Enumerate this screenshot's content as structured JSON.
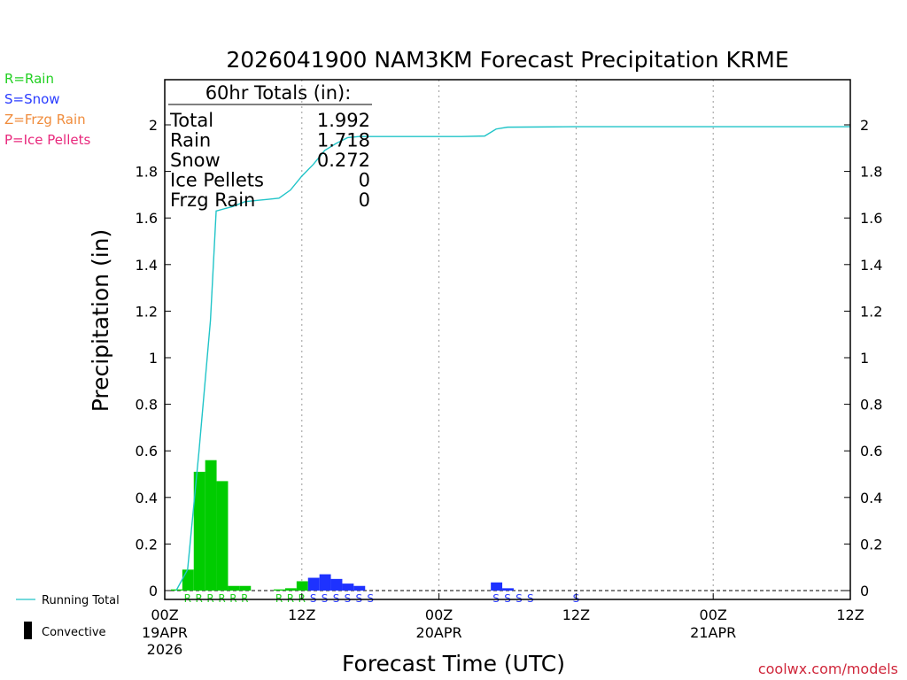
{
  "chart_data": {
    "type": "bar",
    "title": "2026041900 NAM3KM Forecast Precipitation KRME",
    "xlabel": "Forecast Time (UTC)",
    "ylabel": "Precipitation (in)",
    "ylim": [
      0,
      2.2
    ],
    "xlim_hours": [
      0,
      60
    ],
    "yticks": [
      "0",
      "0.2",
      "0.4",
      "0.6",
      "0.8",
      "1",
      "1.2",
      "1.4",
      "1.6",
      "1.8",
      "2"
    ],
    "xticks": [
      {
        "hour": 0,
        "label": "00Z",
        "date": "19APR",
        "year": "2026"
      },
      {
        "hour": 12,
        "label": "12Z",
        "date": "",
        "year": ""
      },
      {
        "hour": 24,
        "label": "00Z",
        "date": "20APR",
        "year": ""
      },
      {
        "hour": 36,
        "label": "12Z",
        "date": "",
        "year": ""
      },
      {
        "hour": 48,
        "label": "00Z",
        "date": "21APR",
        "year": ""
      },
      {
        "hour": 60,
        "label": "12Z",
        "date": "",
        "year": ""
      }
    ],
    "bar_width_hours": 1,
    "bars": [
      {
        "hour": 1,
        "value": 0.005,
        "type": "rain"
      },
      {
        "hour": 2,
        "value": 0.09,
        "type": "rain"
      },
      {
        "hour": 3,
        "value": 0.51,
        "type": "rain"
      },
      {
        "hour": 4,
        "value": 0.56,
        "type": "rain"
      },
      {
        "hour": 5,
        "value": 0.47,
        "type": "rain"
      },
      {
        "hour": 6,
        "value": 0.02,
        "type": "rain"
      },
      {
        "hour": 7,
        "value": 0.02,
        "type": "rain"
      },
      {
        "hour": 10,
        "value": 0.005,
        "type": "rain"
      },
      {
        "hour": 11,
        "value": 0.01,
        "type": "rain"
      },
      {
        "hour": 12,
        "value": 0.04,
        "type": "rain"
      },
      {
        "hour": 13,
        "value": 0.055,
        "type": "snow"
      },
      {
        "hour": 14,
        "value": 0.07,
        "type": "snow"
      },
      {
        "hour": 15,
        "value": 0.05,
        "type": "snow"
      },
      {
        "hour": 16,
        "value": 0.03,
        "type": "snow"
      },
      {
        "hour": 17,
        "value": 0.02,
        "type": "snow"
      },
      {
        "hour": 29,
        "value": 0.035,
        "type": "snow"
      },
      {
        "hour": 30,
        "value": 0.01,
        "type": "snow"
      }
    ],
    "running_total": {
      "name": "Running Total",
      "points": [
        [
          1,
          0.0
        ],
        [
          2,
          0.09
        ],
        [
          3,
          0.6
        ],
        [
          4,
          1.16
        ],
        [
          4.5,
          1.63
        ],
        [
          6,
          1.65
        ],
        [
          7,
          1.67
        ],
        [
          8,
          1.675
        ],
        [
          9,
          1.68
        ],
        [
          10,
          1.685
        ],
        [
          11,
          1.72
        ],
        [
          12,
          1.78
        ],
        [
          13,
          1.83
        ],
        [
          14,
          1.89
        ],
        [
          15,
          1.92
        ],
        [
          16,
          1.945
        ],
        [
          17,
          1.95
        ],
        [
          18,
          1.95
        ],
        [
          20,
          1.95
        ],
        [
          22,
          1.95
        ],
        [
          24,
          1.95
        ],
        [
          26,
          1.95
        ],
        [
          28,
          1.952
        ],
        [
          29,
          1.982
        ],
        [
          30,
          1.99
        ],
        [
          33,
          1.991
        ],
        [
          36,
          1.992
        ],
        [
          48,
          1.992
        ],
        [
          60,
          1.992
        ]
      ]
    },
    "type_markers": [
      {
        "hour": 2,
        "char": "R",
        "type": "rain"
      },
      {
        "hour": 3,
        "char": "R",
        "type": "rain"
      },
      {
        "hour": 4,
        "char": "R",
        "type": "rain"
      },
      {
        "hour": 5,
        "char": "R",
        "type": "rain"
      },
      {
        "hour": 6,
        "char": "R",
        "type": "rain"
      },
      {
        "hour": 7,
        "char": "R",
        "type": "rain"
      },
      {
        "hour": 10,
        "char": "R",
        "type": "rain"
      },
      {
        "hour": 11,
        "char": "R",
        "type": "rain"
      },
      {
        "hour": 12,
        "char": "R",
        "type": "rain"
      },
      {
        "hour": 13,
        "char": "S",
        "type": "snow"
      },
      {
        "hour": 14,
        "char": "S",
        "type": "snow"
      },
      {
        "hour": 15,
        "char": "S",
        "type": "snow"
      },
      {
        "hour": 16,
        "char": "S",
        "type": "snow"
      },
      {
        "hour": 17,
        "char": "S",
        "type": "snow"
      },
      {
        "hour": 18,
        "char": "S",
        "type": "snow"
      },
      {
        "hour": 29,
        "char": "S",
        "type": "snow"
      },
      {
        "hour": 30,
        "char": "S",
        "type": "snow"
      },
      {
        "hour": 31,
        "char": "S",
        "type": "snow"
      },
      {
        "hour": 32,
        "char": "S",
        "type": "snow"
      },
      {
        "hour": 36,
        "char": "S",
        "type": "snow"
      }
    ],
    "totals": {
      "header": "60hr Totals (in):",
      "rows": [
        {
          "label": "Total",
          "value": "1.992"
        },
        {
          "label": "Rain",
          "value": "1.718"
        },
        {
          "label": "Snow",
          "value": "0.272"
        },
        {
          "label": "Ice Pellets",
          "value": "0"
        },
        {
          "label": "Frzg Rain",
          "value": "0"
        }
      ]
    },
    "type_legend": [
      {
        "text": "R=Rain",
        "color": "#22d022"
      },
      {
        "text": "S=Snow",
        "color": "#2a3cff"
      },
      {
        "text": "Z=Frzg Rain",
        "color": "#f08c3c"
      },
      {
        "text": "P=Ice Pellets",
        "color": "#e8287c"
      }
    ],
    "bottom_legend": {
      "running_total": "Running Total",
      "convective": "Convective"
    },
    "credit": "coolwx.com/models",
    "colors": {
      "rain": "#00cc00",
      "snow": "#1e32ff",
      "running_total": "#20c4c8",
      "rain_marker": "#22d022",
      "snow_marker": "#2a3cff",
      "credit": "#d0283c"
    }
  }
}
